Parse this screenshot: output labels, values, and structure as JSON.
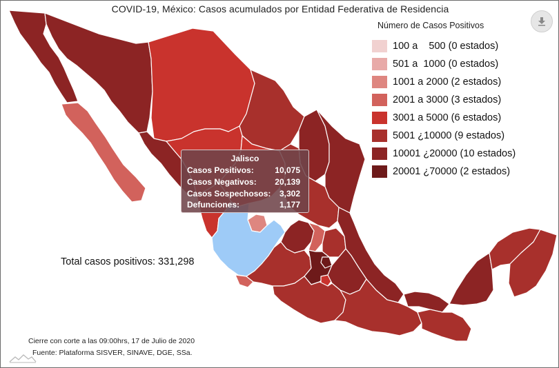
{
  "title": "COVID-19, México: Casos acumulados por Entidad Federativa de Residencia",
  "legend": {
    "title": "Número de Casos Positivos",
    "items": [
      {
        "label": "100 a    500 (0 estados)",
        "color": "#f1d1d0"
      },
      {
        "label": "501 a  1000 (0 estados)",
        "color": "#e8aaa8"
      },
      {
        "label": "1001 a 2000 (2 estados)",
        "color": "#de8680"
      },
      {
        "label": "2001 a 3000 (3 estados)",
        "color": "#d2625c"
      },
      {
        "label": "3001 a 5000 (6 estados)",
        "color": "#c9332d"
      },
      {
        "label": "5001 ¿10000 (9 estados)",
        "color": "#a8302c"
      },
      {
        "label": "10001 ¿20000 (10 estados)",
        "color": "#8c2424"
      },
      {
        "label": "20001 ¿70000 (2 estados)",
        "color": "#6e1a1a"
      }
    ]
  },
  "colors": {
    "highlight": "#9ecbf7",
    "border": "#ffffff"
  },
  "total": "Total casos positivos: 331,298",
  "tooltip": {
    "state": "Jalisco",
    "rows": [
      {
        "label": "Casos Positivos:",
        "value": "10,075"
      },
      {
        "label": "Casos Negativos:",
        "value": "20,139"
      },
      {
        "label": "Casos Sospechosos:",
        "value": "3,302"
      },
      {
        "label": "Defunciones:",
        "value": "1,177"
      }
    ]
  },
  "footer": {
    "cutoff": "Cierre con corte a las 09:00hrs, 17 de Julio de 2020",
    "source": "Fuente: Plataforma SISVER, SINAVE, DGE, SSa."
  },
  "icons": {
    "download": "download-icon",
    "logo": "mountain-logo-icon"
  }
}
